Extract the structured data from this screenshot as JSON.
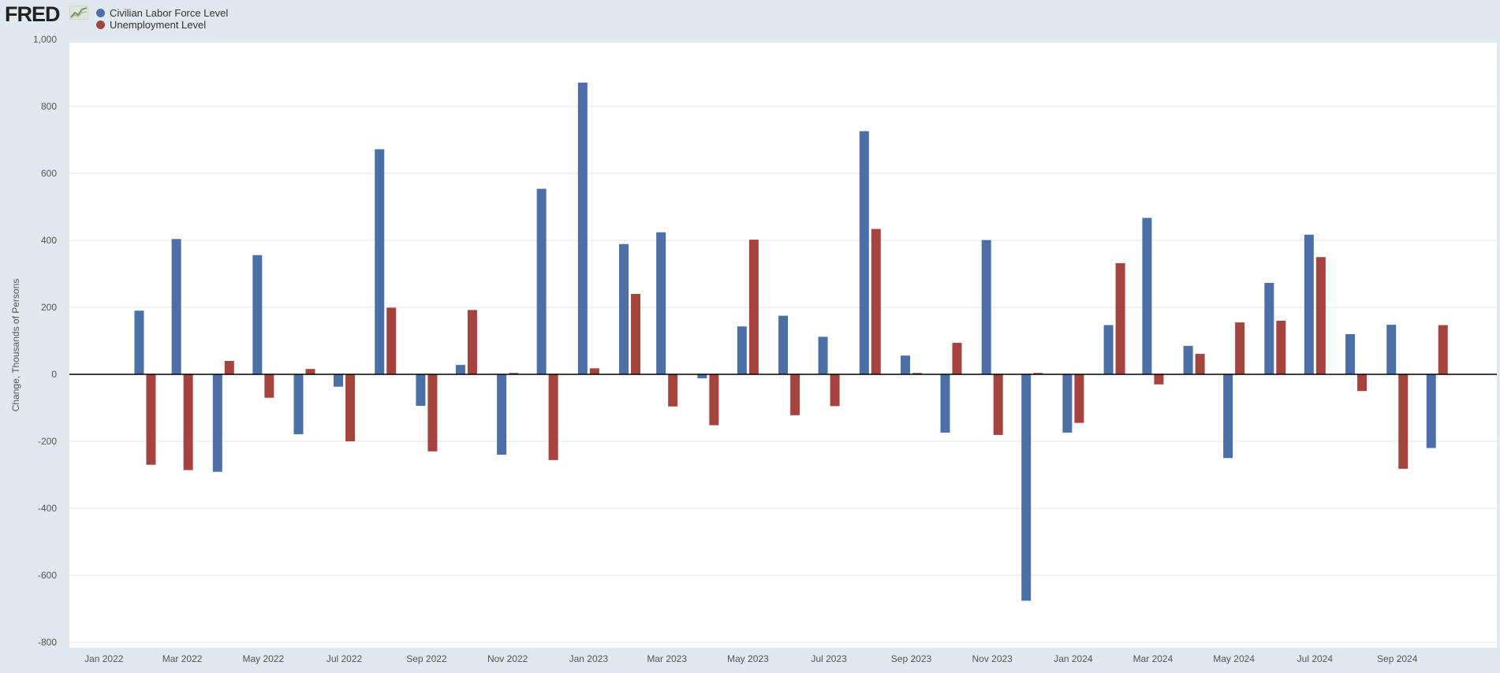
{
  "header": {
    "logo_text": "FRED",
    "logo_icon": "line-chart-icon"
  },
  "colors": {
    "series_0": "#4c6fa8",
    "series_1": "#a5443f",
    "page_bg": "#e1e9f0",
    "plot_bg": "#ffffff",
    "grid": "#e6e6e6",
    "zero_line": "#000000"
  },
  "chart_data": {
    "type": "bar",
    "ylabel": "Change, Thousands of Persons",
    "ylim": [
      -800,
      1000
    ],
    "yticks": [
      -800,
      -600,
      -400,
      -200,
      0,
      200,
      400,
      600,
      800,
      1000
    ],
    "ytick_labels": [
      "-800",
      "-600",
      "-400",
      "-200",
      "0",
      "200",
      "400",
      "600",
      "800",
      "1,000"
    ],
    "xlim": [
      "2021-12-06",
      "2024-11-15"
    ],
    "xticks": [
      "2022-01-01",
      "2022-03-01",
      "2022-05-01",
      "2022-07-01",
      "2022-09-01",
      "2022-11-01",
      "2023-01-01",
      "2023-03-01",
      "2023-05-01",
      "2023-07-01",
      "2023-09-01",
      "2023-11-01",
      "2024-01-01",
      "2024-03-01",
      "2024-05-01",
      "2024-07-01",
      "2024-09-01"
    ],
    "xtick_labels": [
      "Jan 2022",
      "Mar 2022",
      "May 2022",
      "Jul 2022",
      "Sep 2022",
      "Nov 2022",
      "Jan 2023",
      "Mar 2023",
      "May 2023",
      "Jul 2023",
      "Sep 2023",
      "Nov 2023",
      "Jan 2024",
      "Mar 2024",
      "May 2024",
      "Jul 2024",
      "Sep 2024"
    ],
    "grid": true,
    "legend_position": "top-left",
    "x": [
      "2022-02-01",
      "2022-03-01",
      "2022-04-01",
      "2022-05-01",
      "2022-06-01",
      "2022-07-01",
      "2022-08-01",
      "2022-09-01",
      "2022-10-01",
      "2022-11-01",
      "2022-12-01",
      "2023-01-01",
      "2023-02-01",
      "2023-03-01",
      "2023-04-01",
      "2023-05-01",
      "2023-06-01",
      "2023-07-01",
      "2023-08-01",
      "2023-09-01",
      "2023-10-01",
      "2023-11-01",
      "2023-12-01",
      "2024-01-01",
      "2024-02-01",
      "2024-03-01",
      "2024-04-01",
      "2024-05-01",
      "2024-06-01",
      "2024-07-01",
      "2024-08-01",
      "2024-09-01",
      "2024-10-01"
    ],
    "series": [
      {
        "name": "Civilian Labor Force Level",
        "values": [
          190,
          404,
          -291,
          356,
          -179,
          -37,
          672,
          -94,
          28,
          -240,
          554,
          871,
          389,
          424,
          -12,
          143,
          175,
          112,
          726,
          56,
          -174,
          401,
          -676,
          -174,
          147,
          467,
          85,
          -250,
          273,
          417,
          120,
          148,
          -220
        ]
      },
      {
        "name": "Unemployment Level",
        "values": [
          -270,
          -286,
          40,
          -70,
          16,
          -200,
          199,
          -230,
          192,
          4,
          -256,
          18,
          240,
          -96,
          -152,
          402,
          -122,
          -95,
          434,
          4,
          94,
          -181,
          4,
          -145,
          332,
          -30,
          61,
          155,
          160,
          350,
          -50,
          -282,
          147
        ]
      }
    ]
  }
}
